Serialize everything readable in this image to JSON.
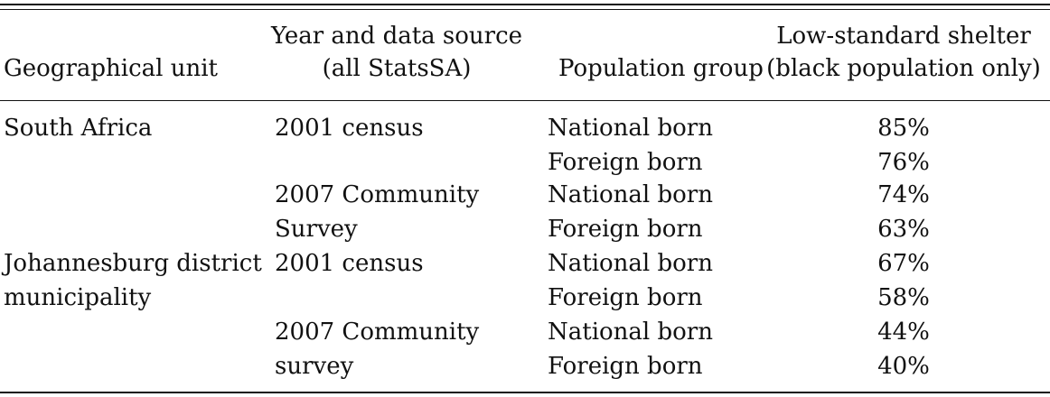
{
  "header": {
    "geo": "Geographical unit",
    "year_line1": "Year and data source",
    "year_line2": "(all StatsSA)",
    "pop": "Population group",
    "shelter_line1": "Low-standard shelter",
    "shelter_line2": "(black population only)"
  },
  "rows": [
    {
      "geo": "South Africa",
      "year": "2001 census",
      "pop": "National born",
      "value": "85%"
    },
    {
      "geo": "",
      "year": "",
      "pop": "Foreign born",
      "value": "76%"
    },
    {
      "geo": "",
      "year": "2007 Community",
      "pop": "National born",
      "value": "74%"
    },
    {
      "geo": "",
      "year": "Survey",
      "pop": "Foreign born",
      "value": "63%"
    },
    {
      "geo": "Johannesburg district",
      "year": "2001 census",
      "pop": "National born",
      "value": "67%"
    },
    {
      "geo": "municipality",
      "year": "",
      "pop": "Foreign born",
      "value": "58%"
    },
    {
      "geo": "",
      "year": "2007 Community",
      "pop": "National born",
      "value": "44%"
    },
    {
      "geo": "",
      "year": "survey",
      "pop": "Foreign born",
      "value": "40%"
    }
  ]
}
